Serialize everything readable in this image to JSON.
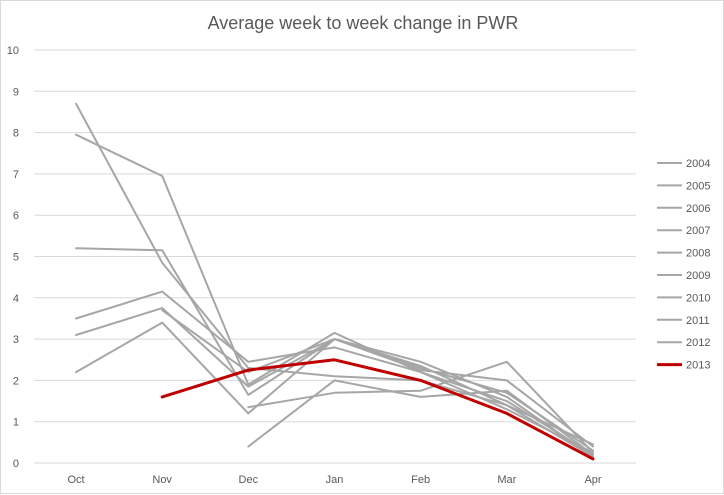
{
  "chart_data": {
    "type": "line",
    "title": "Average week to week change in PWR",
    "xlabel": "",
    "ylabel": "",
    "categories": [
      "Oct",
      "Nov",
      "Dec",
      "Jan",
      "Feb",
      "Mar",
      "Apr"
    ],
    "ylim": [
      0,
      10
    ],
    "yticks": [
      0,
      1,
      2,
      3,
      4,
      5,
      6,
      7,
      8,
      9,
      10
    ],
    "grid": true,
    "legend_position": "right",
    "colors": {
      "other_years": "#a6a6a6",
      "highlight": "#c00000",
      "grid": "#d9d9d9",
      "text": "#595959"
    },
    "series": [
      {
        "name": "2004",
        "values": [
          8.7,
          4.85,
          2.3,
          2.1,
          2.0,
          1.4,
          0.15
        ]
      },
      {
        "name": "2005",
        "values": [
          7.95,
          6.95,
          1.9,
          3.15,
          2.2,
          1.5,
          0.2
        ]
      },
      {
        "name": "2006",
        "values": [
          5.2,
          5.15,
          1.65,
          3.0,
          2.45,
          1.6,
          0.15
        ]
      },
      {
        "name": "2007",
        "values": [
          3.5,
          4.15,
          2.45,
          2.8,
          2.2,
          1.3,
          0.25
        ]
      },
      {
        "name": "2008",
        "values": [
          3.1,
          3.75,
          1.85,
          3.0,
          2.3,
          1.7,
          0.3
        ]
      },
      {
        "name": "2009",
        "values": [
          2.2,
          3.4,
          1.2,
          3.0,
          2.25,
          2.0,
          0.4
        ]
      },
      {
        "name": "2010",
        "values": [
          null,
          null,
          1.35,
          1.7,
          1.75,
          2.45,
          0.25
        ]
      },
      {
        "name": "2011",
        "values": [
          null,
          null,
          0.4,
          2.0,
          1.6,
          1.75,
          0.2
        ]
      },
      {
        "name": "2012",
        "values": [
          null,
          3.7,
          2.2,
          3.0,
          2.35,
          1.4,
          0.45
        ]
      },
      {
        "name": "2013",
        "values": [
          null,
          1.6,
          2.25,
          2.5,
          2.0,
          1.2,
          0.1
        ]
      }
    ]
  }
}
